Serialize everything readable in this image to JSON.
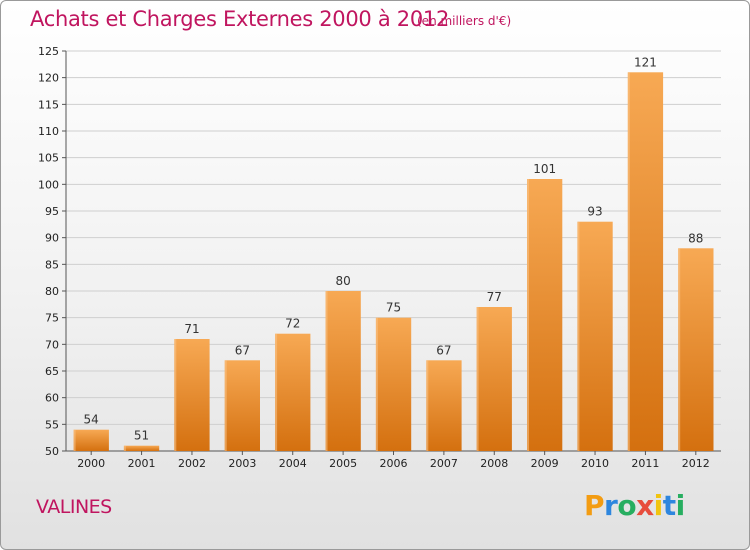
{
  "header": {
    "title": "Achats et Charges Externes 2000 à 2012",
    "subtitle": "(en milliers d'€)"
  },
  "footer": {
    "town": "VALINES",
    "logo_letters": [
      "P",
      "r",
      "o",
      "x",
      "i",
      "t",
      "i"
    ],
    "logo_colors": [
      "#f39c12",
      "#2e86de",
      "#27ae60",
      "#e74c3c",
      "#f1c40f",
      "#2e86de",
      "#27ae60"
    ]
  },
  "colors": {
    "bar_top": "#f7a954",
    "bar_bottom": "#d4700f",
    "grid": "#cfcfcf",
    "accent": "#c0155f"
  },
  "chart_data": {
    "type": "bar",
    "title": "Achats et Charges Externes 2000 à 2012",
    "subtitle": "(en milliers d'€)",
    "categories": [
      "2000",
      "2001",
      "2002",
      "2003",
      "2004",
      "2005",
      "2006",
      "2007",
      "2008",
      "2009",
      "2010",
      "2011",
      "2012"
    ],
    "values": [
      54,
      51,
      71,
      67,
      72,
      80,
      75,
      67,
      77,
      101,
      93,
      121,
      88
    ],
    "ylim": [
      50,
      125
    ],
    "yticks": [
      50,
      55,
      60,
      65,
      70,
      75,
      80,
      85,
      90,
      95,
      100,
      105,
      110,
      115,
      120,
      125
    ],
    "grid": true,
    "data_labels": true
  }
}
